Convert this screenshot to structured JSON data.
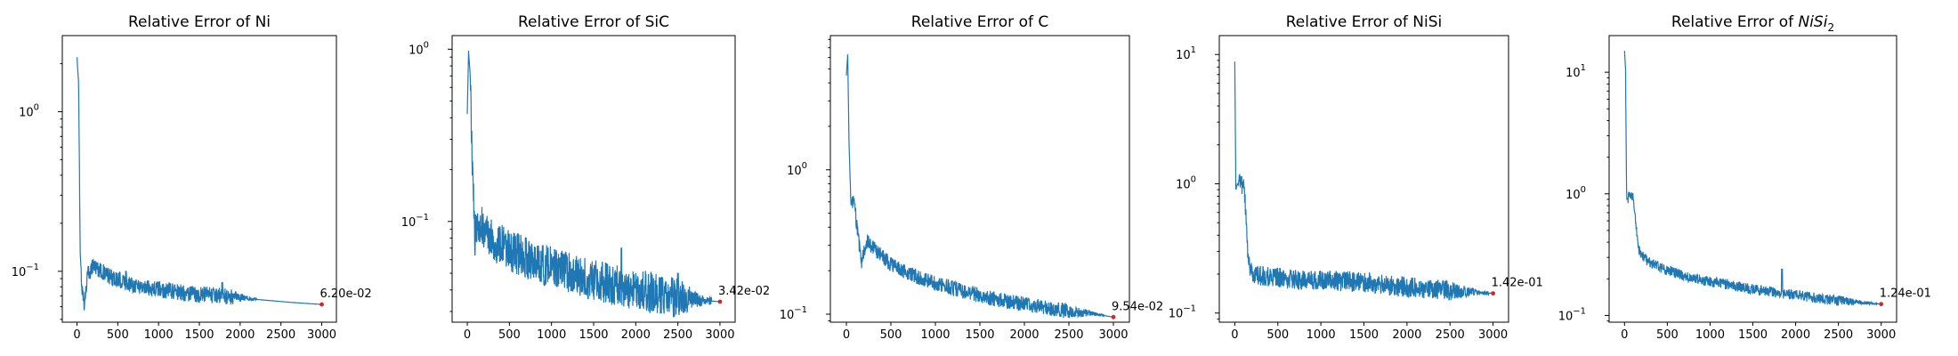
{
  "colors": {
    "series": "#1f77b4",
    "marker": "#d62728"
  },
  "chart_data": [
    {
      "type": "line",
      "title": "Relative Error of Ni",
      "title_sub": "",
      "xlabel": "",
      "ylabel": "",
      "yscale": "log",
      "xlim": [
        -180,
        3180
      ],
      "ylim": [
        0.048,
        3.0
      ],
      "xticks": [
        0,
        500,
        1000,
        1500,
        2000,
        2500,
        3000
      ],
      "yticks": [
        {
          "value": 0.1,
          "label": "10",
          "exp": "−1"
        },
        {
          "value": 1,
          "label": "10",
          "exp": "0"
        }
      ],
      "series_points": [
        [
          0,
          2.2
        ],
        [
          20,
          1.5
        ],
        [
          40,
          0.12
        ],
        [
          60,
          0.08
        ],
        [
          90,
          0.062
        ],
        [
          130,
          0.095
        ],
        [
          200,
          0.11
        ],
        [
          300,
          0.1
        ],
        [
          400,
          0.092
        ],
        [
          600,
          0.085
        ],
        [
          800,
          0.08
        ],
        [
          1000,
          0.077
        ],
        [
          1200,
          0.075
        ],
        [
          1400,
          0.072
        ],
        [
          1600,
          0.071
        ],
        [
          1800,
          0.07
        ],
        [
          2000,
          0.068
        ],
        [
          2300,
          0.066
        ],
        [
          2600,
          0.064
        ],
        [
          3000,
          0.062
        ]
      ],
      "noise_until": 2200,
      "noise_amp": 0.12,
      "spikes": [
        [
          600,
          0.1
        ],
        [
          1780,
          0.085
        ]
      ],
      "final_x": 3000,
      "final_value": 0.062,
      "final_label": "6.20e-02"
    },
    {
      "type": "line",
      "title": "Relative Error of SiC",
      "title_sub": "",
      "xlabel": "",
      "ylabel": "",
      "yscale": "log",
      "xlim": [
        -180,
        3180
      ],
      "ylim": [
        0.026,
        1.2
      ],
      "xticks": [
        0,
        500,
        1000,
        1500,
        2000,
        2500,
        3000
      ],
      "yticks": [
        {
          "value": 0.1,
          "label": "10",
          "exp": "−1"
        },
        {
          "value": 1,
          "label": "10",
          "exp": "0"
        }
      ],
      "series_points": [
        [
          0,
          0.42
        ],
        [
          15,
          0.98
        ],
        [
          35,
          0.7
        ],
        [
          60,
          0.2
        ],
        [
          90,
          0.08
        ],
        [
          140,
          0.1
        ],
        [
          200,
          0.09
        ],
        [
          300,
          0.078
        ],
        [
          500,
          0.068
        ],
        [
          800,
          0.058
        ],
        [
          1100,
          0.052
        ],
        [
          1400,
          0.047
        ],
        [
          1700,
          0.043
        ],
        [
          2000,
          0.04
        ],
        [
          2400,
          0.037
        ],
        [
          2700,
          0.035
        ],
        [
          3000,
          0.0342
        ]
      ],
      "noise_until": 2900,
      "noise_amp": 0.28,
      "spikes": [
        [
          1830,
          0.07
        ],
        [
          2500,
          0.05
        ]
      ],
      "final_x": 3000,
      "final_value": 0.0342,
      "final_label": "3.42e-02"
    },
    {
      "type": "line",
      "title": "Relative Error of C",
      "title_sub": "",
      "xlabel": "",
      "ylabel": "",
      "yscale": "log",
      "xlim": [
        -180,
        3180
      ],
      "ylim": [
        0.088,
        8.5
      ],
      "xticks": [
        0,
        500,
        1000,
        1500,
        2000,
        2500,
        3000
      ],
      "yticks": [
        {
          "value": 0.1,
          "label": "10",
          "exp": "−1"
        },
        {
          "value": 1,
          "label": "10",
          "exp": "0"
        }
      ],
      "series_points": [
        [
          0,
          4.5
        ],
        [
          15,
          6.3
        ],
        [
          30,
          1.5
        ],
        [
          50,
          0.6
        ],
        [
          90,
          0.58
        ],
        [
          130,
          0.35
        ],
        [
          170,
          0.23
        ],
        [
          230,
          0.32
        ],
        [
          350,
          0.27
        ],
        [
          500,
          0.22
        ],
        [
          700,
          0.19
        ],
        [
          1000,
          0.165
        ],
        [
          1300,
          0.145
        ],
        [
          1600,
          0.13
        ],
        [
          1900,
          0.12
        ],
        [
          2200,
          0.112
        ],
        [
          2500,
          0.105
        ],
        [
          2800,
          0.1
        ],
        [
          3000,
          0.0954
        ]
      ],
      "noise_until": 2900,
      "noise_amp": 0.12,
      "spikes": [],
      "final_x": 3000,
      "final_value": 0.0954,
      "final_label": "9.54e-02"
    },
    {
      "type": "line",
      "title": "Relative Error of NiSi",
      "title_sub": "",
      "xlabel": "",
      "ylabel": "",
      "yscale": "log",
      "xlim": [
        -180,
        3180
      ],
      "ylim": [
        0.085,
        14.0
      ],
      "xticks": [
        0,
        500,
        1000,
        1500,
        2000,
        2500,
        3000
      ],
      "yticks": [
        {
          "value": 0.1,
          "label": "10",
          "exp": "−1"
        },
        {
          "value": 1,
          "label": "10",
          "exp": "0"
        },
        {
          "value": 10,
          "label": "10",
          "exp": "1"
        }
      ],
      "series_points": [
        [
          0,
          8.8
        ],
        [
          12,
          0.9
        ],
        [
          30,
          1.0
        ],
        [
          70,
          1.0
        ],
        [
          110,
          0.95
        ],
        [
          140,
          0.4
        ],
        [
          160,
          0.25
        ],
        [
          200,
          0.2
        ],
        [
          400,
          0.19
        ],
        [
          600,
          0.185
        ],
        [
          800,
          0.18
        ],
        [
          1000,
          0.18
        ],
        [
          1300,
          0.175
        ],
        [
          1600,
          0.17
        ],
        [
          1900,
          0.16
        ],
        [
          2200,
          0.155
        ],
        [
          2500,
          0.15
        ],
        [
          2800,
          0.145
        ],
        [
          3000,
          0.142
        ]
      ],
      "noise_until": 2950,
      "noise_amp": 0.18,
      "spikes": [
        [
          640,
          0.11
        ]
      ],
      "final_x": 3000,
      "final_value": 0.142,
      "final_label": "1.42e-01"
    },
    {
      "type": "line",
      "title": "Relative Error of ",
      "title_sub": "2",
      "title_italic": "NiSi",
      "xlabel": "",
      "ylabel": "",
      "yscale": "log",
      "xlim": [
        -180,
        3180
      ],
      "ylim": [
        0.088,
        20.0
      ],
      "xticks": [
        0,
        500,
        1000,
        1500,
        2000,
        2500,
        3000
      ],
      "yticks": [
        {
          "value": 0.1,
          "label": "10",
          "exp": "−1"
        },
        {
          "value": 1,
          "label": "10",
          "exp": "0"
        },
        {
          "value": 10,
          "label": "10",
          "exp": "1"
        }
      ],
      "series_points": [
        [
          0,
          15.0
        ],
        [
          12,
          10.5
        ],
        [
          25,
          0.9
        ],
        [
          60,
          0.95
        ],
        [
          100,
          0.95
        ],
        [
          130,
          0.6
        ],
        [
          160,
          0.36
        ],
        [
          200,
          0.31
        ],
        [
          300,
          0.27
        ],
        [
          500,
          0.235
        ],
        [
          700,
          0.21
        ],
        [
          1000,
          0.19
        ],
        [
          1300,
          0.175
        ],
        [
          1600,
          0.16
        ],
        [
          1900,
          0.15
        ],
        [
          2200,
          0.14
        ],
        [
          2500,
          0.132
        ],
        [
          2800,
          0.127
        ],
        [
          3000,
          0.124
        ]
      ],
      "noise_until": 2950,
      "noise_amp": 0.1,
      "spikes": [
        [
          1840,
          0.24
        ]
      ],
      "final_x": 3000,
      "final_value": 0.124,
      "final_label": "1.24e-01"
    }
  ]
}
